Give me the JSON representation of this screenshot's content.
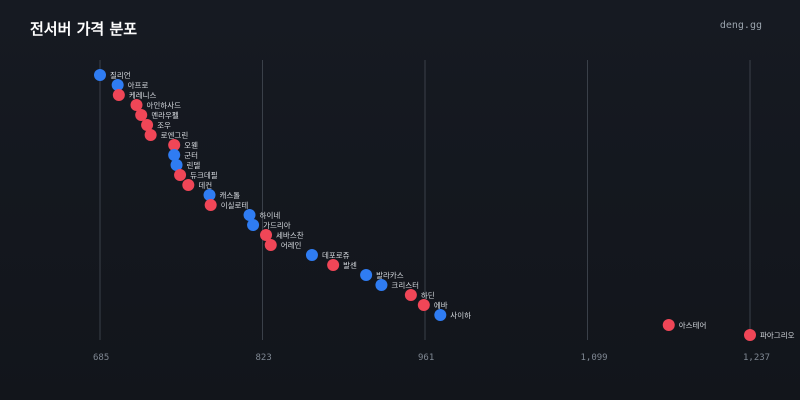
{
  "header": {
    "title": "전서버 가격 분포",
    "brand": "deng.gg"
  },
  "colors": {
    "background": "#14171d",
    "blue": "#2f7cf2",
    "red": "#f04657",
    "grid": "#3a4049",
    "text": "#d5d9de"
  },
  "chart_data": {
    "type": "scatter",
    "title": "전서버 가격 분포",
    "xlabel": "",
    "ylabel": "",
    "xlim": [
      685,
      1237
    ],
    "xticks": [
      685,
      823,
      961,
      1099,
      1237
    ],
    "xtick_labels": [
      "685",
      "823",
      "961",
      "1,099",
      "1,237"
    ],
    "grid": true,
    "points": [
      {
        "name": "질리언",
        "x": 685,
        "group": "blue"
      },
      {
        "name": "아프로",
        "x": 700,
        "group": "blue"
      },
      {
        "name": "케레니스",
        "x": 701,
        "group": "red"
      },
      {
        "name": "아인하사드",
        "x": 716,
        "group": "red"
      },
      {
        "name": "멘라우펠",
        "x": 720,
        "group": "red"
      },
      {
        "name": "조우",
        "x": 725,
        "group": "red"
      },
      {
        "name": "로엔그린",
        "x": 728,
        "group": "red"
      },
      {
        "name": "오웬",
        "x": 748,
        "group": "red"
      },
      {
        "name": "군터",
        "x": 748,
        "group": "blue"
      },
      {
        "name": "린델",
        "x": 750,
        "group": "blue"
      },
      {
        "name": "듀크데필",
        "x": 753,
        "group": "red"
      },
      {
        "name": "데컨",
        "x": 760,
        "group": "red"
      },
      {
        "name": "캐스톨",
        "x": 778,
        "group": "blue"
      },
      {
        "name": "이실로테",
        "x": 779,
        "group": "red"
      },
      {
        "name": "하이네",
        "x": 812,
        "group": "blue"
      },
      {
        "name": "가드리아",
        "x": 815,
        "group": "blue"
      },
      {
        "name": "세바스찬",
        "x": 826,
        "group": "red"
      },
      {
        "name": "어레인",
        "x": 830,
        "group": "red"
      },
      {
        "name": "데포로쥬",
        "x": 865,
        "group": "blue"
      },
      {
        "name": "발센",
        "x": 883,
        "group": "red"
      },
      {
        "name": "발라카스",
        "x": 911,
        "group": "blue"
      },
      {
        "name": "크리스터",
        "x": 924,
        "group": "blue"
      },
      {
        "name": "하딘",
        "x": 949,
        "group": "red"
      },
      {
        "name": "에바",
        "x": 960,
        "group": "red"
      },
      {
        "name": "사이하",
        "x": 974,
        "group": "blue"
      },
      {
        "name": "아스테어",
        "x": 1168,
        "group": "red"
      },
      {
        "name": "파아그리오",
        "x": 1237,
        "group": "red"
      }
    ]
  }
}
